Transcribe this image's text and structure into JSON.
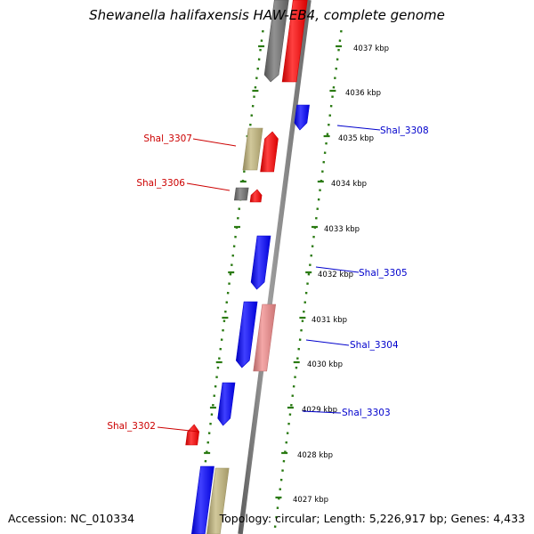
{
  "title": "Shewanella halifaxensis HAW-EB4, complete genome",
  "footer": {
    "accession": "Accession: NC_010334",
    "summary": "Topology: circular; Length: 5,226,917 bp; Genes: 4,433"
  },
  "colors": {
    "background": "#ffffff",
    "backbone": "#7f7f7f",
    "ruler": "#2a7a12",
    "forward_cds": "#ff0000",
    "reverse_cds": "#0000ff",
    "rna": "#6e6e6e",
    "khaki": "#c2b57a",
    "pink": "#f08a8a",
    "label_forward": "#cc0000",
    "label_reverse": "#0000cc"
  },
  "ticks": [
    {
      "label": "4037 kbp"
    },
    {
      "label": "4036 kbp"
    },
    {
      "label": "4035 kbp"
    },
    {
      "label": "4034 kbp"
    },
    {
      "label": "4033 kbp"
    },
    {
      "label": "4032 kbp"
    },
    {
      "label": "4031 kbp"
    },
    {
      "label": "4030 kbp"
    },
    {
      "label": "4029 kbp"
    },
    {
      "label": "4028 kbp"
    },
    {
      "label": "4027 kbp"
    }
  ],
  "gene_labels": [
    {
      "name": "Shal_3308",
      "side": "right"
    },
    {
      "name": "Shal_3307",
      "side": "left"
    },
    {
      "name": "Shal_3306",
      "side": "left"
    },
    {
      "name": "Shal_3305",
      "side": "right"
    },
    {
      "name": "Shal_3304",
      "side": "right"
    },
    {
      "name": "Shal_3303",
      "side": "right"
    },
    {
      "name": "Shal_3302",
      "side": "left"
    }
  ]
}
